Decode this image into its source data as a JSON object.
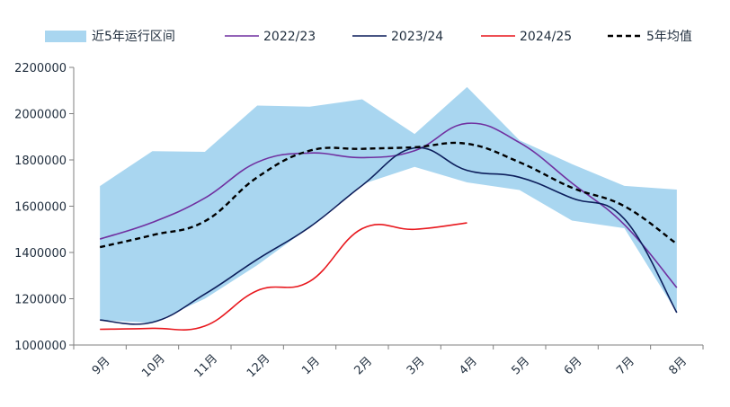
{
  "chart_data": {
    "type": "line",
    "categories": [
      "9月",
      "10月",
      "11月",
      "12月",
      "1月",
      "2月",
      "3月",
      "4月",
      "5月",
      "6月",
      "7月",
      "8月"
    ],
    "ylim": [
      1000000,
      2200000
    ],
    "yticks": [
      1000000,
      1200000,
      1400000,
      1600000,
      1800000,
      2000000,
      2200000
    ],
    "ytick_labels": [
      "1000000",
      "1200000",
      "1400000",
      "1600000",
      "1800000",
      "2000000",
      "2200000"
    ],
    "legend_position": "top",
    "grid": false,
    "band": {
      "name": "近5年运行区间",
      "color": "#a9d6f0",
      "upper": [
        1687000,
        1838000,
        1835000,
        2035000,
        2030000,
        2062000,
        1912000,
        2115000,
        1885000,
        1782000,
        1688000,
        1672000
      ],
      "lower": [
        1108000,
        1095000,
        1200000,
        1345000,
        1510000,
        1695000,
        1770000,
        1703000,
        1670000,
        1538000,
        1505000,
        1140000
      ]
    },
    "series": [
      {
        "name": "2022/23",
        "color": "#7030a0",
        "style": "solid",
        "values": [
          1458000,
          1530000,
          1635000,
          1790000,
          1830000,
          1810000,
          1840000,
          1958000,
          1875000,
          1700000,
          1520000,
          1248000
        ]
      },
      {
        "name": "2023/24",
        "color": "#0d1f5c",
        "style": "solid",
        "values": [
          1108000,
          1098000,
          1220000,
          1370000,
          1510000,
          1690000,
          1852000,
          1755000,
          1725000,
          1635000,
          1545000,
          1140000
        ]
      },
      {
        "name": "2024/25",
        "color": "#e8171d",
        "style": "solid",
        "values": [
          1068000,
          1072000,
          1082000,
          1235000,
          1275000,
          1503000,
          1500000,
          1528000,
          null,
          null,
          null,
          null
        ]
      },
      {
        "name": "5年均值",
        "color": "#000000",
        "style": "dashed",
        "values": [
          1423000,
          1475000,
          1535000,
          1725000,
          1840000,
          1848000,
          1855000,
          1870000,
          1790000,
          1680000,
          1600000,
          1437000
        ]
      }
    ]
  }
}
